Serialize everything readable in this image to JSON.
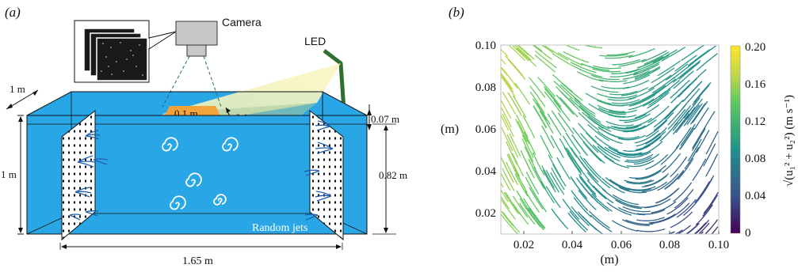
{
  "panel_a": {
    "label": "(a)",
    "camera_label": "Camera",
    "led_label": "LED",
    "dim_depth": "1 m",
    "dim_height": "1 m",
    "dim_length": "1.65 m",
    "dim_fov_width": "0.1 m",
    "dim_fov_depth": "0.1 m",
    "dim_laser_depth": "0.07 m",
    "dim_jet_height": "0.82 m",
    "random_jets_label": "Random jets",
    "colors": {
      "water": "#29a6e6",
      "fov": "#f2a33a",
      "light": "#f5f0b0",
      "led": "#2e6e2e"
    }
  },
  "panel_b": {
    "label": "(b)",
    "xlabel": "(m)",
    "ylabel": "(m)",
    "colorbar_label": "√(u₁² + u₂²) (m s⁻¹)",
    "colorbar_ticks": [
      "0.20",
      "0.16",
      "0.12",
      "0.08",
      "0.04",
      "0"
    ],
    "colormap": [
      "#440154",
      "#3b528b",
      "#21918c",
      "#5ec962",
      "#fde725"
    ]
  },
  "chart_data": {
    "type": "scatter",
    "subtype": "streak-velocity-field",
    "xlim": [
      0.01,
      0.1
    ],
    "ylim": [
      0.01,
      0.1
    ],
    "xticks": [
      "0.02",
      "0.04",
      "0.06",
      "0.08",
      "0.10"
    ],
    "yticks": [
      "0.02",
      "0.04",
      "0.06",
      "0.08",
      "0.10"
    ],
    "xlabel": "(m)",
    "ylabel": "(m)",
    "color_scale": {
      "variable": "√(u₁² + u₂²)",
      "units": "m s⁻¹",
      "range": [
        0,
        0.2
      ]
    },
    "legend": "colorbar-right",
    "grid": false
  }
}
